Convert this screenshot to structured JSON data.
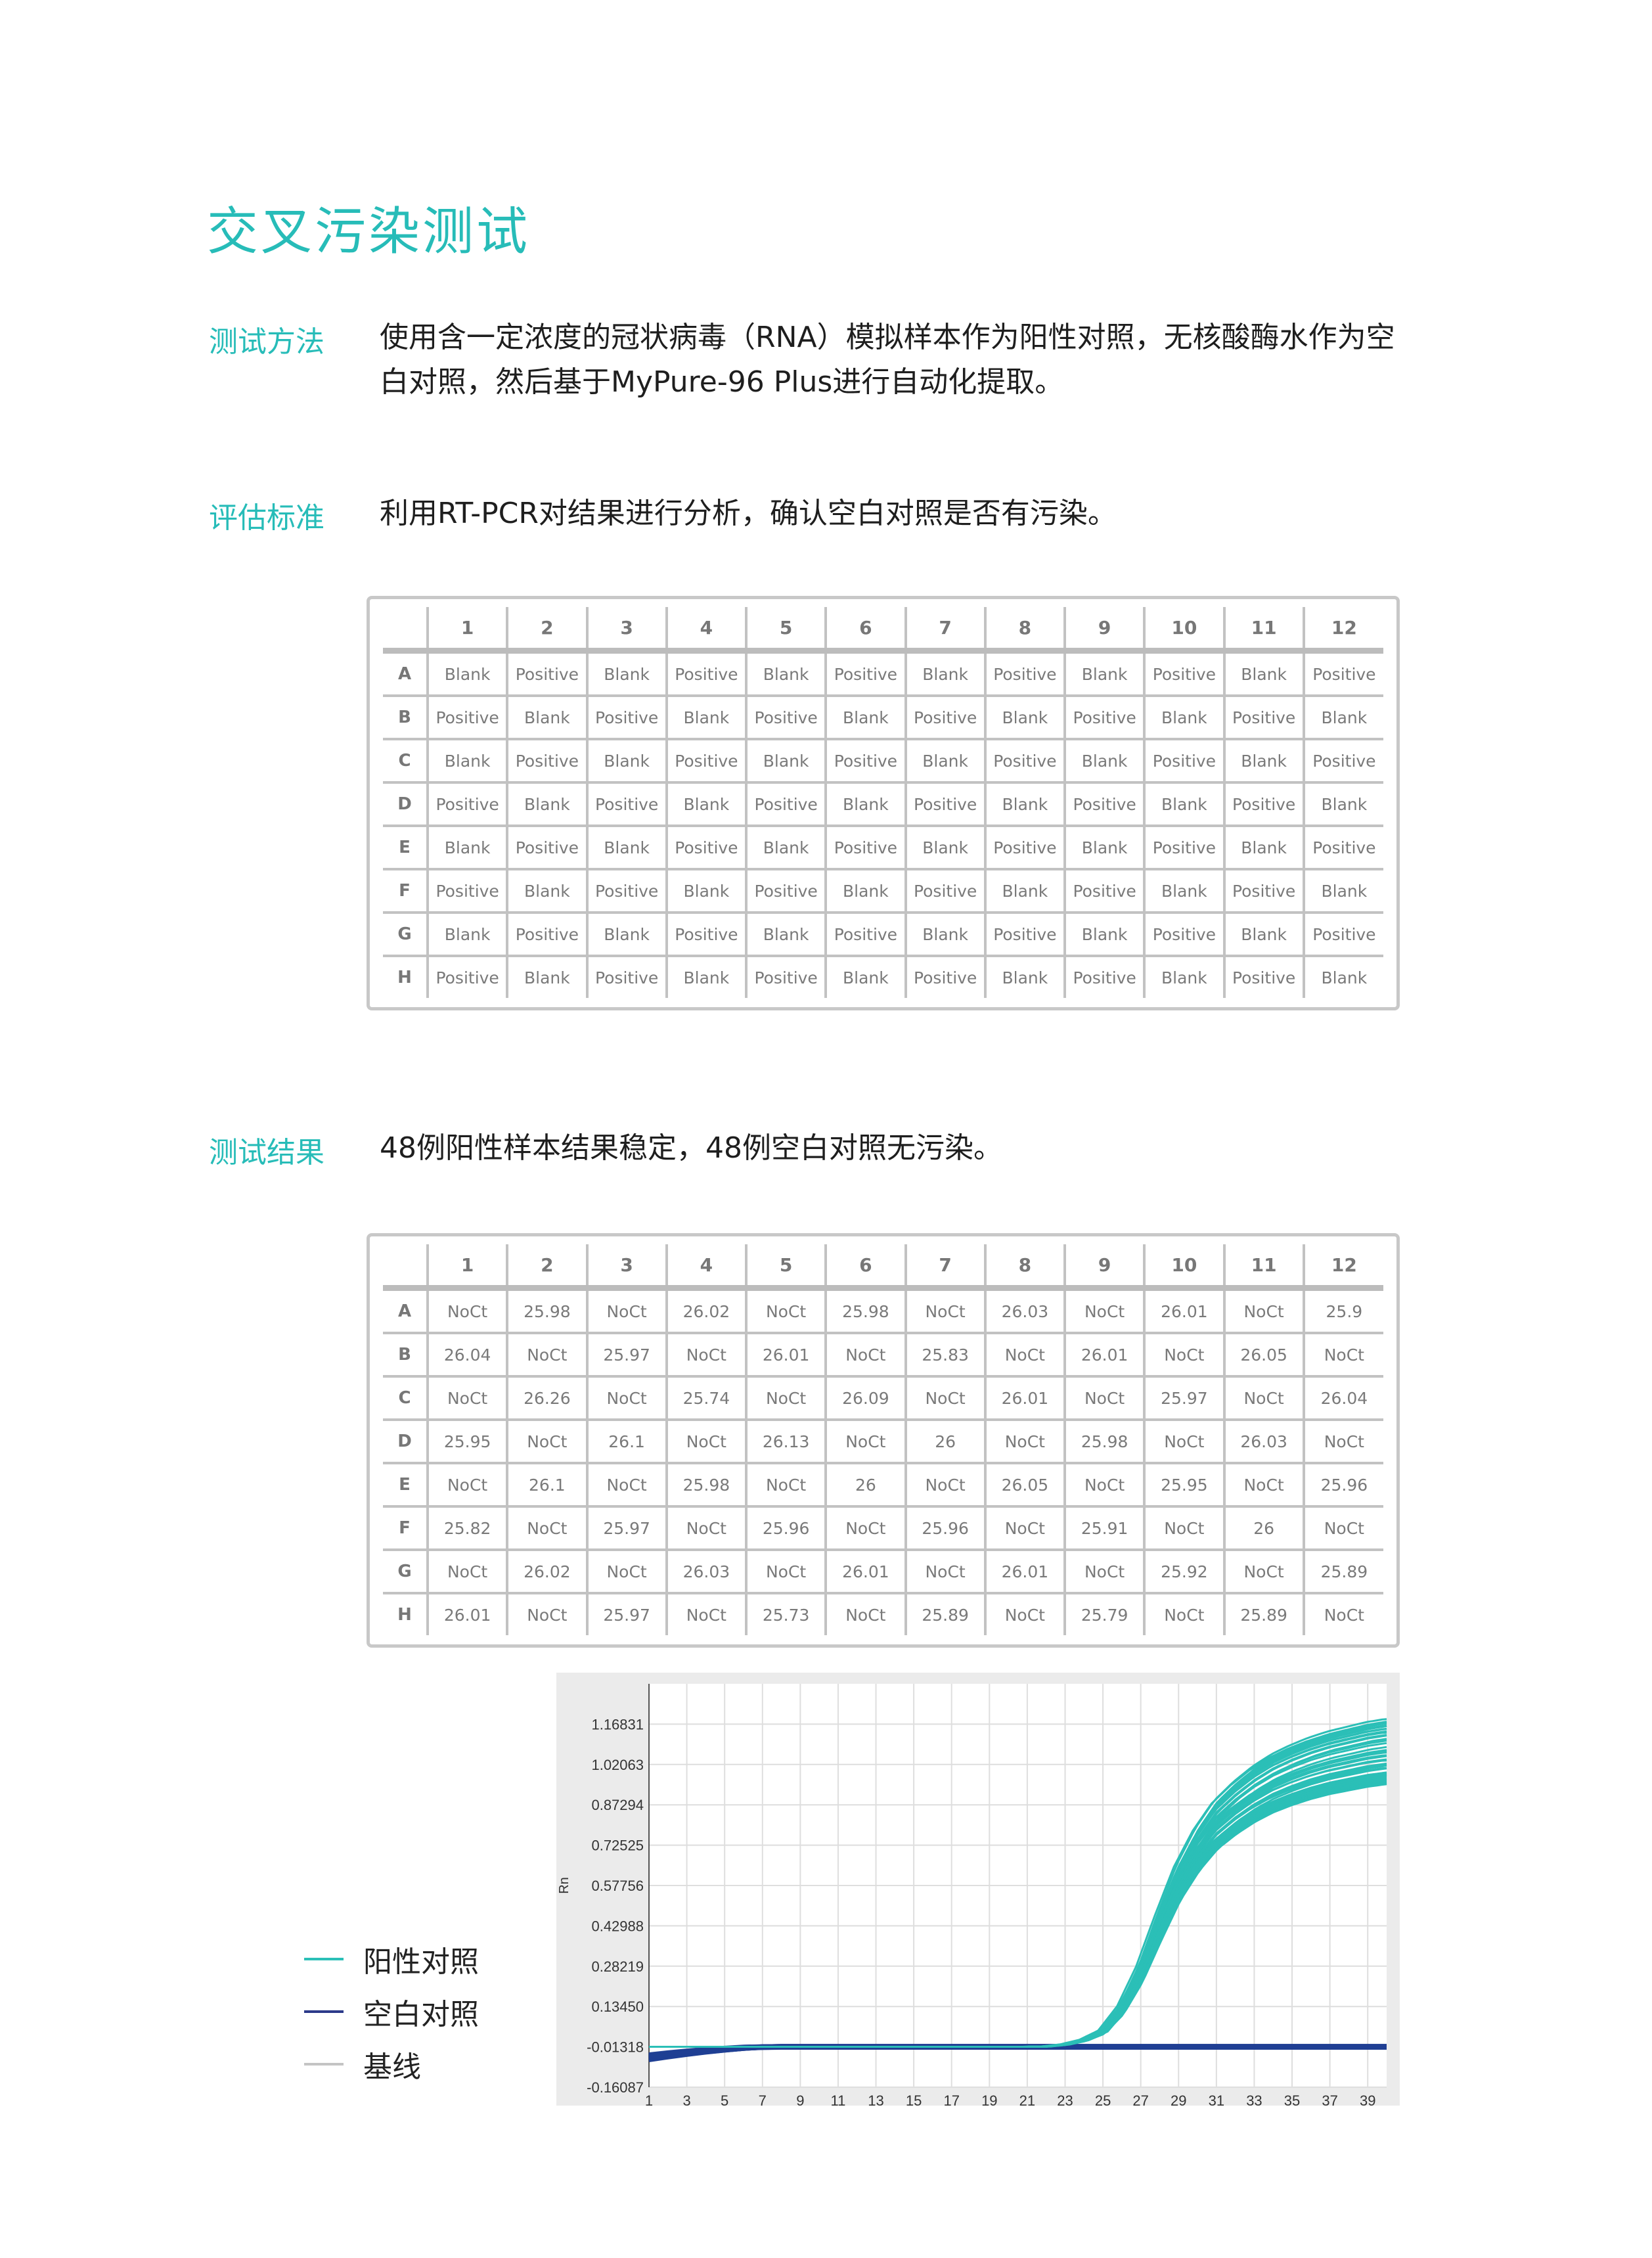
{
  "title": "交叉污染测试",
  "sections": {
    "method": {
      "label": "测试方法",
      "lines": [
        "使用含一定浓度的冠状病毒（RNA）模拟样本作为阳性对照，无核酸酶水作为空",
        "白对照，然后基于MyPure-96 Plus进行自动化提取。"
      ]
    },
    "criteria": {
      "label": "评估标准",
      "text": "利用RT-PCR对结果进行分析，确认空白对照是否有污染。"
    },
    "result": {
      "label": "测试结果",
      "text": "48例阳性样本结果稳定，48例空白对照无污染。"
    }
  },
  "plate_layout": {
    "columns": [
      "1",
      "2",
      "3",
      "4",
      "5",
      "6",
      "7",
      "8",
      "9",
      "10",
      "11",
      "12"
    ],
    "rows": [
      {
        "label": "A",
        "cells": [
          "Blank",
          "Positive",
          "Blank",
          "Positive",
          "Blank",
          "Positive",
          "Blank",
          "Positive",
          "Blank",
          "Positive",
          "Blank",
          "Positive"
        ]
      },
      {
        "label": "B",
        "cells": [
          "Positive",
          "Blank",
          "Positive",
          "Blank",
          "Positive",
          "Blank",
          "Positive",
          "Blank",
          "Positive",
          "Blank",
          "Positive",
          "Blank"
        ]
      },
      {
        "label": "C",
        "cells": [
          "Blank",
          "Positive",
          "Blank",
          "Positive",
          "Blank",
          "Positive",
          "Blank",
          "Positive",
          "Blank",
          "Positive",
          "Blank",
          "Positive"
        ]
      },
      {
        "label": "D",
        "cells": [
          "Positive",
          "Blank",
          "Positive",
          "Blank",
          "Positive",
          "Blank",
          "Positive",
          "Blank",
          "Positive",
          "Blank",
          "Positive",
          "Blank"
        ]
      },
      {
        "label": "E",
        "cells": [
          "Blank",
          "Positive",
          "Blank",
          "Positive",
          "Blank",
          "Positive",
          "Blank",
          "Positive",
          "Blank",
          "Positive",
          "Blank",
          "Positive"
        ]
      },
      {
        "label": "F",
        "cells": [
          "Positive",
          "Blank",
          "Positive",
          "Blank",
          "Positive",
          "Blank",
          "Positive",
          "Blank",
          "Positive",
          "Blank",
          "Positive",
          "Blank"
        ]
      },
      {
        "label": "G",
        "cells": [
          "Blank",
          "Positive",
          "Blank",
          "Positive",
          "Blank",
          "Positive",
          "Blank",
          "Positive",
          "Blank",
          "Positive",
          "Blank",
          "Positive"
        ]
      },
      {
        "label": "H",
        "cells": [
          "Positive",
          "Blank",
          "Positive",
          "Blank",
          "Positive",
          "Blank",
          "Positive",
          "Blank",
          "Positive",
          "Blank",
          "Positive",
          "Blank"
        ]
      }
    ]
  },
  "plate_results": {
    "columns": [
      "1",
      "2",
      "3",
      "4",
      "5",
      "6",
      "7",
      "8",
      "9",
      "10",
      "11",
      "12"
    ],
    "rows": [
      {
        "label": "A",
        "cells": [
          "NoCt",
          "25.98",
          "NoCt",
          "26.02",
          "NoCt",
          "25.98",
          "NoCt",
          "26.03",
          "NoCt",
          "26.01",
          "NoCt",
          "25.9"
        ]
      },
      {
        "label": "B",
        "cells": [
          "26.04",
          "NoCt",
          "25.97",
          "NoCt",
          "26.01",
          "NoCt",
          "25.83",
          "NoCt",
          "26.01",
          "NoCt",
          "26.05",
          "NoCt"
        ]
      },
      {
        "label": "C",
        "cells": [
          "NoCt",
          "26.26",
          "NoCt",
          "25.74",
          "NoCt",
          "26.09",
          "NoCt",
          "26.01",
          "NoCt",
          "25.97",
          "NoCt",
          "26.04"
        ]
      },
      {
        "label": "D",
        "cells": [
          "25.95",
          "NoCt",
          "26.1",
          "NoCt",
          "26.13",
          "NoCt",
          "26",
          "NoCt",
          "25.98",
          "NoCt",
          "26.03",
          "NoCt"
        ]
      },
      {
        "label": "E",
        "cells": [
          "NoCt",
          "26.1",
          "NoCt",
          "25.98",
          "NoCt",
          "26",
          "NoCt",
          "26.05",
          "NoCt",
          "25.95",
          "NoCt",
          "25.96"
        ]
      },
      {
        "label": "F",
        "cells": [
          "25.82",
          "NoCt",
          "25.97",
          "NoCt",
          "25.96",
          "NoCt",
          "25.96",
          "NoCt",
          "25.91",
          "NoCt",
          "26",
          "NoCt"
        ]
      },
      {
        "label": "G",
        "cells": [
          "NoCt",
          "26.02",
          "NoCt",
          "26.03",
          "NoCt",
          "26.01",
          "NoCt",
          "26.01",
          "NoCt",
          "25.92",
          "NoCt",
          "25.89"
        ]
      },
      {
        "label": "H",
        "cells": [
          "26.01",
          "NoCt",
          "25.97",
          "NoCt",
          "25.73",
          "NoCt",
          "25.89",
          "NoCt",
          "25.79",
          "NoCt",
          "25.89",
          "NoCt"
        ]
      }
    ]
  },
  "chart_data": {
    "type": "line",
    "ylabel": "Rn",
    "xlabel": "",
    "xlim": [
      1,
      40
    ],
    "ylim": [
      -0.16087,
      1.316
    ],
    "grid": true,
    "x_ticks": [
      "1",
      "3",
      "5",
      "7",
      "9",
      "11",
      "13",
      "15",
      "17",
      "19",
      "21",
      "23",
      "25",
      "27",
      "29",
      "31",
      "33",
      "35",
      "37",
      "39"
    ],
    "y_ticks": [
      "1.16831",
      "1.02063",
      "0.87294",
      "0.72525",
      "0.57756",
      "0.42988",
      "0.28219",
      "0.13450",
      "-0.01318",
      "-0.16087"
    ],
    "x": [
      1,
      2,
      3,
      4,
      5,
      6,
      7,
      8,
      9,
      10,
      11,
      12,
      13,
      14,
      15,
      16,
      17,
      18,
      19,
      20,
      21,
      22,
      23,
      24,
      25,
      26,
      27,
      28,
      29,
      30,
      31,
      32,
      33,
      34,
      35,
      36,
      37,
      38,
      39,
      40
    ],
    "series": [
      {
        "name": "阳性对照",
        "color": "#2bbfb7",
        "count": 48,
        "values": [
          -0.013,
          -0.013,
          -0.013,
          -0.013,
          -0.013,
          -0.013,
          -0.013,
          -0.013,
          -0.013,
          -0.013,
          -0.013,
          -0.013,
          -0.013,
          -0.013,
          -0.013,
          -0.013,
          -0.013,
          -0.013,
          -0.013,
          -0.013,
          -0.013,
          -0.012,
          -0.005,
          0.01,
          0.04,
          0.12,
          0.25,
          0.42,
          0.58,
          0.7,
          0.79,
          0.85,
          0.9,
          0.94,
          0.97,
          0.995,
          1.015,
          1.03,
          1.045,
          1.055
        ]
      },
      {
        "name": "空白对照",
        "color": "#1f3f93",
        "count": 48,
        "values": [
          -0.04,
          -0.033,
          -0.027,
          -0.022,
          -0.018,
          -0.015,
          -0.014,
          -0.013,
          -0.013,
          -0.013,
          -0.013,
          -0.013,
          -0.013,
          -0.013,
          -0.013,
          -0.013,
          -0.013,
          -0.013,
          -0.013,
          -0.013,
          -0.013,
          -0.013,
          -0.013,
          -0.013,
          -0.013,
          -0.013,
          -0.013,
          -0.013,
          -0.013,
          -0.013,
          -0.013,
          -0.013,
          -0.013,
          -0.013,
          -0.013,
          -0.013,
          -0.013,
          -0.013,
          -0.013,
          -0.013
        ]
      },
      {
        "name": "基线",
        "color": "#c4c4c4"
      }
    ]
  }
}
